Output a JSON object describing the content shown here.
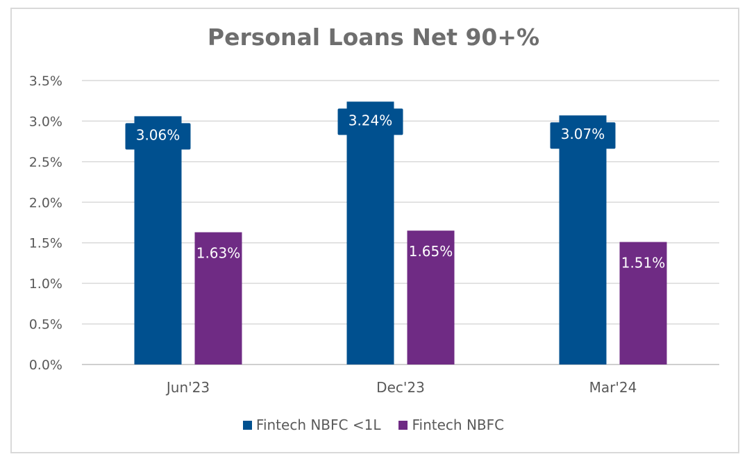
{
  "chart_data": {
    "type": "bar",
    "title": "Personal Loans Net 90+%",
    "categories": [
      "Jun'23",
      "Dec'23",
      "Mar'24"
    ],
    "series": [
      {
        "name": "Fintech NBFC <1L",
        "values": [
          3.06,
          3.24,
          3.07
        ],
        "labels": [
          "3.06%",
          "3.24%",
          "3.07%"
        ],
        "color": "#00508f"
      },
      {
        "name": "Fintech NBFC",
        "values": [
          1.63,
          1.65,
          1.51
        ],
        "labels": [
          "1.63%",
          "1.65%",
          "1.51%"
        ],
        "color": "#6f2b84"
      }
    ],
    "ylim": [
      0,
      3.5
    ],
    "yticks": [
      "0.0%",
      "0.5%",
      "1.0%",
      "1.5%",
      "2.0%",
      "2.5%",
      "3.0%",
      "3.5%"
    ],
    "grid": true,
    "legend_position": "bottom"
  }
}
